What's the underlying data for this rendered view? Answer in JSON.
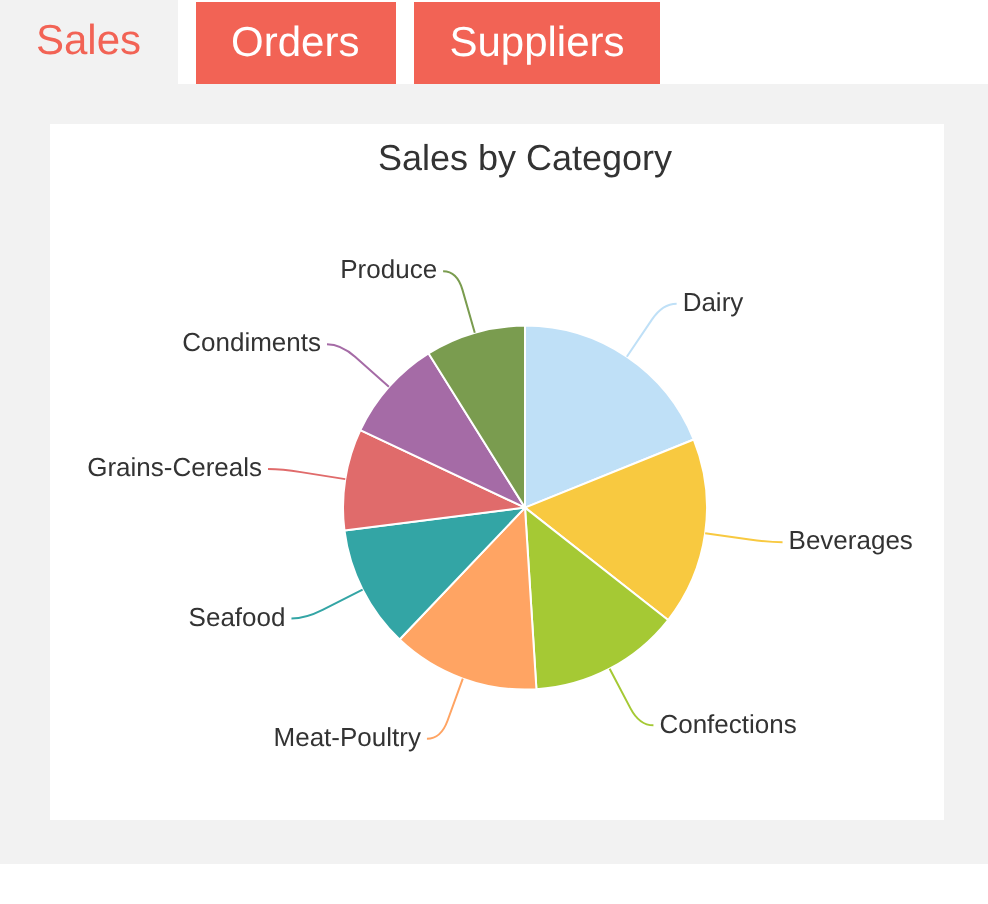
{
  "chart_data": {
    "type": "pie",
    "title": "Sales by Category",
    "categories": [
      "Dairy",
      "Beverages",
      "Confections",
      "Meat-Poultry",
      "Seafood",
      "Grains-Cereals",
      "Condiments",
      "Produce"
    ],
    "values": [
      18.9,
      16.7,
      13.4,
      13.1,
      10.9,
      9.0,
      9.1,
      8.9
    ],
    "colors": [
      "#bfe0f7",
      "#f8c940",
      "#a5c934",
      "#ffa463",
      "#33a5a5",
      "#e06b6b",
      "#a56ba6",
      "#7a9c4f"
    ],
    "annotations": [
      "Sales",
      "Orders",
      "Suppliers"
    ]
  }
}
